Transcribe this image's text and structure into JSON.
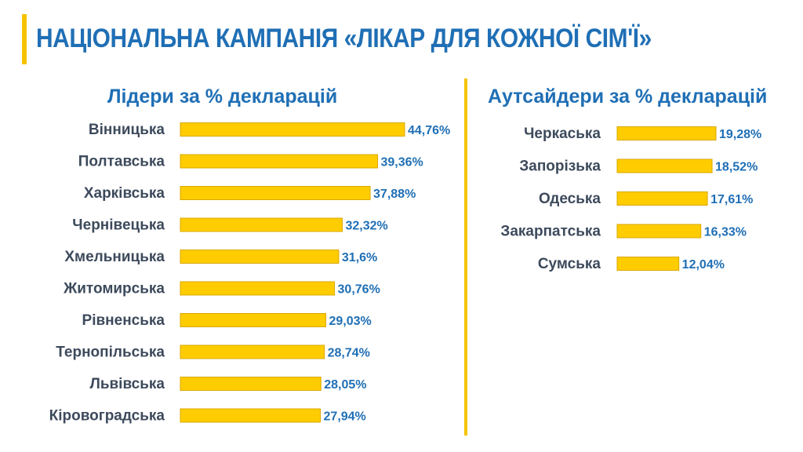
{
  "header": {
    "title": "НАЦІОНАЛЬНА КАМПАНІЯ «ЛІКАР ДЛЯ КОЖНОЇ СІМ'Ї»"
  },
  "colors": {
    "accent": "#f5c400",
    "bar": "#ffcc00",
    "bar_edge": "#d9a800",
    "title_text": "#1f6fb5",
    "category_text": "#3d4a5c",
    "value_text": "#1f6fb5"
  },
  "chart_data": [
    {
      "type": "bar",
      "orientation": "horizontal",
      "title": "Лідери за % декларацій",
      "categories": [
        "Вінницька",
        "Полтавська",
        "Харківська",
        "Чернівецька",
        "Хмельницька",
        "Житомирська",
        "Рівненська",
        "Тернопільська",
        "Львівська",
        "Кіровоградська"
      ],
      "values": [
        44.76,
        39.36,
        37.88,
        32.32,
        31.6,
        30.76,
        29.03,
        28.74,
        28.05,
        27.94
      ],
      "labels": [
        "44,76%",
        "39,36%",
        "37,88%",
        "32,32%",
        "31,6%",
        "30,76%",
        "29,03%",
        "28,74%",
        "28,05%",
        "27,94%"
      ],
      "xlim": [
        0,
        44.76
      ],
      "grid": false,
      "legend": "none"
    },
    {
      "type": "bar",
      "orientation": "horizontal",
      "title": "Аутсайдери за % декларацій",
      "categories": [
        "Черкаська",
        "Запорізька",
        "Одеська",
        "Закарпатська",
        "Сумська"
      ],
      "values": [
        19.28,
        18.52,
        17.61,
        16.33,
        12.04
      ],
      "labels": [
        "19,28%",
        "18,52%",
        "17,61%",
        "16,33%",
        "12,04%"
      ],
      "xlim": [
        0,
        19.28
      ],
      "grid": false,
      "legend": "none"
    }
  ]
}
